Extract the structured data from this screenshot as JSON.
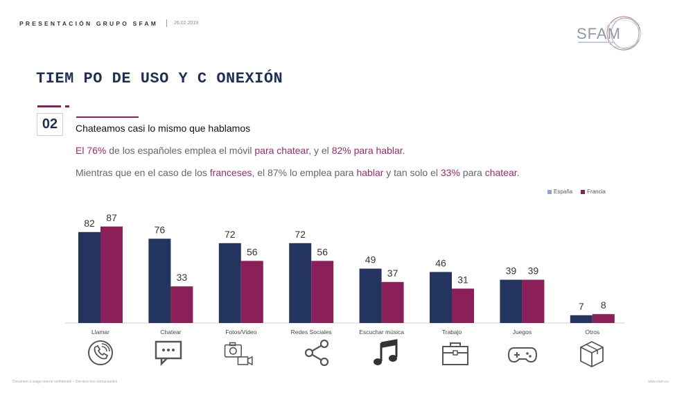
{
  "header": {
    "title": "PRESENTACIÓN GRUPO SFAM",
    "date": "26.02.2019",
    "logo_text": "SFAM"
  },
  "slide": {
    "title": "TIEM PO DE USO Y C ONEXIÓN",
    "section_number": "02",
    "subtitle": "Chateamos casi lo mismo que hablamos",
    "line1": {
      "p1": "El 76%",
      "p2": " de los españoles emplea el móvil ",
      "p3": "para chatear",
      "p4": ", y el ",
      "p5": "82% para hablar",
      "p6": "."
    },
    "line2": {
      "p1": "Mientras que en el caso de los ",
      "p2": "franceses",
      "p3": ", el 87% lo emplea para ",
      "p4": "hablar",
      "p5": " y tan solo el ",
      "p6": "33%",
      "p7": " para ",
      "p8": "chatear",
      "p9": "."
    }
  },
  "colors": {
    "espana": "#23345f",
    "francia": "#8b1f58",
    "legend_espana": "#8ea3d6"
  },
  "chart_data": {
    "type": "bar",
    "categories": [
      "Llamar",
      "Chatear",
      "Fotos/Video",
      "Redes Sociales",
      "Escuchar música",
      "Trabajo",
      "Juegos",
      "Otros"
    ],
    "series": [
      {
        "name": "España",
        "values": [
          82,
          76,
          72,
          72,
          49,
          46,
          39,
          7
        ]
      },
      {
        "name": "Francia",
        "values": [
          87,
          33,
          56,
          56,
          37,
          31,
          39,
          8
        ]
      }
    ],
    "ylim": [
      0,
      100
    ],
    "grid": false,
    "legend": "top-right"
  },
  "icons": [
    "phone-icon",
    "chat-icon",
    "camera-video-icon",
    "share-icon",
    "music-note-icon",
    "briefcase-icon",
    "gamepad-icon",
    "box-icon"
  ],
  "footer": {
    "left": "Document à usage interne confidentiel – Derniers mis contractuelles",
    "right": "www.sfam.eu"
  }
}
